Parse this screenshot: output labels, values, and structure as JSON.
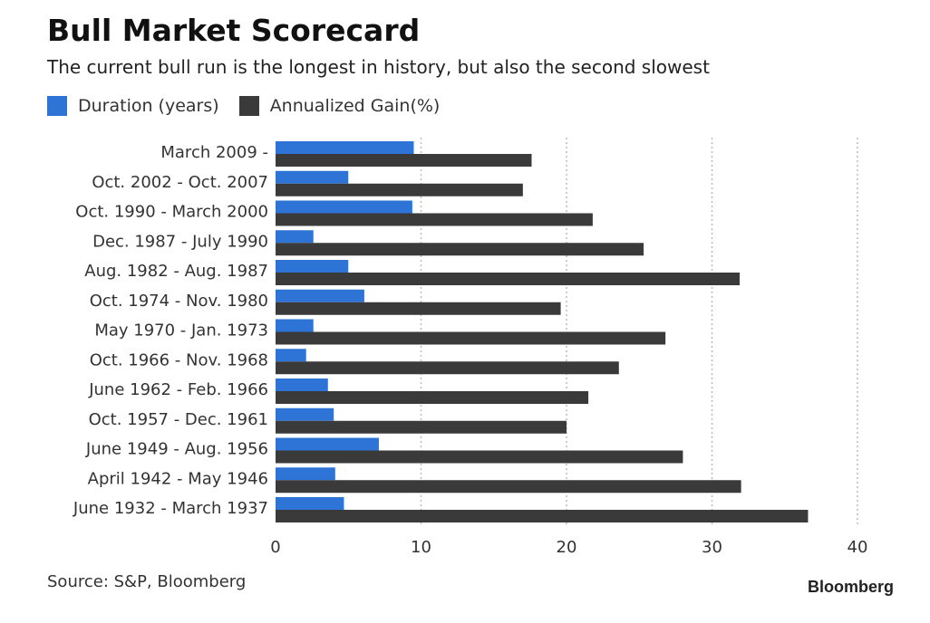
{
  "header": {
    "title": "Bull Market Scorecard",
    "subtitle": "The current bull run is the longest in history, but also the second slowest"
  },
  "footer": {
    "source": "Source: S&P, Bloomberg",
    "brand": "Bloomberg"
  },
  "colors": {
    "duration": "#2e74d6",
    "gain": "#3a3a3a",
    "grid": "#bbbbbb"
  },
  "chart_data": {
    "type": "bar",
    "orientation": "horizontal",
    "title": "Bull Market Scorecard",
    "subtitle": "The current bull run is the longest in history, but also the second slowest",
    "xlabel": "",
    "ylabel": "",
    "xlim": [
      0,
      40
    ],
    "x_ticks": [
      0,
      10,
      20,
      30,
      40
    ],
    "grid": "vertical-dotted",
    "legend_position": "top-left",
    "categories": [
      "March 2009 -",
      "Oct. 2002 - Oct. 2007",
      "Oct. 1990 - March 2000",
      "Dec. 1987 - July 1990",
      "Aug. 1982 - Aug. 1987",
      "Oct. 1974 - Nov. 1980",
      "May 1970 - Jan. 1973",
      "Oct. 1966 - Nov. 1968",
      "June 1962 - Feb. 1966",
      "Oct. 1957 - Dec. 1961",
      "June 1949 - Aug. 1956",
      "April 1942 - May 1946",
      "June 1932 - March 1937"
    ],
    "series": [
      {
        "name": "Duration (years)",
        "values": [
          9.5,
          5.0,
          9.4,
          2.6,
          5.0,
          6.1,
          2.6,
          2.1,
          3.6,
          4.0,
          7.1,
          4.1,
          4.7
        ]
      },
      {
        "name": "Annualized Gain(%)",
        "values": [
          17.6,
          17.0,
          21.8,
          25.3,
          31.9,
          19.6,
          26.8,
          23.6,
          21.5,
          20.0,
          28.0,
          32.0,
          36.6
        ]
      }
    ]
  }
}
